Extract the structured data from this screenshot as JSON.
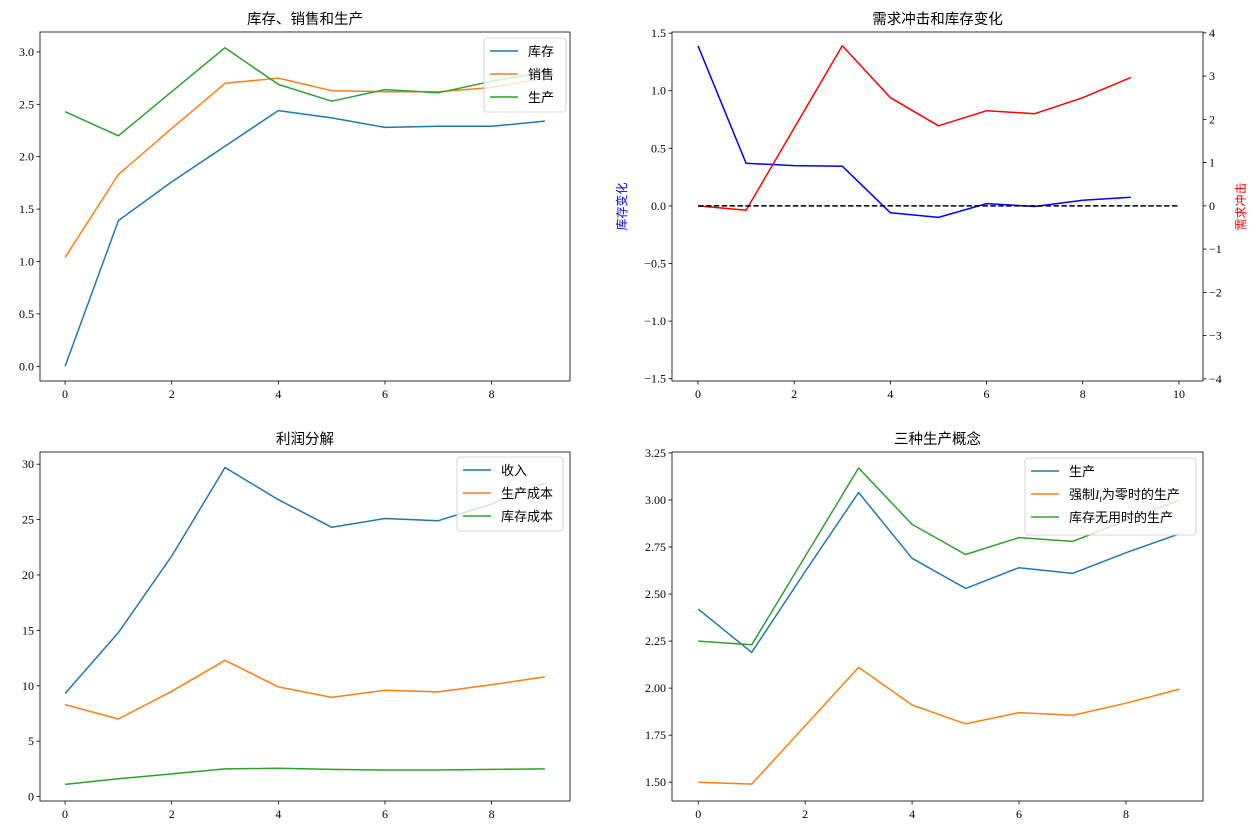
{
  "chart_data": [
    {
      "type": "line",
      "title": "库存、销售和生产",
      "xlabel": "",
      "ylabel": "",
      "xlim": [
        -0.47,
        9.47
      ],
      "ylim": [
        -0.14,
        3.19
      ],
      "grid": false,
      "legend": "upper right",
      "xticks": [
        0,
        2,
        4,
        6,
        8
      ],
      "xtick_labels": [
        "0",
        "2",
        "4",
        "6",
        "8"
      ],
      "yticks": [
        0,
        0.5,
        1.0,
        1.5,
        2.0,
        2.5,
        3.0
      ],
      "ytick_labels": [
        "0.0",
        "0.5",
        "1.0",
        "1.5",
        "2.0",
        "2.5",
        "3.0"
      ],
      "x": [
        0,
        1,
        2,
        3,
        4,
        5,
        6,
        7,
        8,
        9
      ],
      "series": [
        {
          "name": "库存",
          "color": "#1f77b4",
          "values": [
            0.0,
            1.39,
            1.76,
            2.1,
            2.44,
            2.37,
            2.28,
            2.29,
            2.29,
            2.34
          ]
        },
        {
          "name": "销售",
          "color": "#ff7f0e",
          "values": [
            1.04,
            1.83,
            2.27,
            2.7,
            2.75,
            2.63,
            2.62,
            2.62,
            2.66,
            2.75
          ]
        },
        {
          "name": "生产",
          "color": "#2ca02c",
          "values": [
            2.43,
            2.2,
            2.62,
            3.04,
            2.69,
            2.53,
            2.64,
            2.61,
            2.72,
            2.81
          ]
        }
      ]
    },
    {
      "type": "line",
      "title": "需求冲击和库存变化",
      "xlabel": "",
      "ylabel": "库存变化",
      "ylabel_color": "#0000ff",
      "y2label": "需求冲击",
      "y2label_color": "#ff0000",
      "xlim": [
        -0.54,
        10.5
      ],
      "ylim": [
        -1.52,
        1.51
      ],
      "y2lim": [
        -4.05,
        4.02
      ],
      "grid": false,
      "xticks": [
        0,
        2,
        4,
        6,
        8,
        10
      ],
      "xtick_labels": [
        "0",
        "2",
        "4",
        "6",
        "8",
        "10"
      ],
      "yticks": [
        -1.5,
        -1.0,
        -0.5,
        0.0,
        0.5,
        1.0,
        1.5
      ],
      "ytick_labels": [
        "−1.5",
        "−1.0",
        "−0.5",
        "0.0",
        "0.5",
        "1.0",
        "1.5"
      ],
      "y2ticks": [
        -4,
        -3,
        -2,
        -1,
        0,
        1,
        2,
        3,
        4
      ],
      "y2tick_labels": [
        "−4",
        "−3",
        "−2",
        "−1",
        "0",
        "1",
        "2",
        "3",
        "4"
      ],
      "x": [
        0,
        1,
        2,
        3,
        4,
        5,
        6,
        7,
        8,
        9
      ],
      "series": [
        {
          "axis": "left",
          "color": "#0000ff",
          "values": [
            1.39,
            0.37,
            0.35,
            0.345,
            -0.06,
            -0.1,
            0.02,
            -0.005,
            0.05,
            0.075
          ]
        },
        {
          "axis": "right",
          "color": "#ff0000",
          "values": [
            0.0,
            -0.1,
            1.8,
            3.7,
            2.5,
            1.85,
            2.2,
            2.13,
            2.5,
            2.97
          ]
        },
        {
          "axis": "left",
          "color": "#000000",
          "dashed": true,
          "x": [
            0,
            10
          ],
          "values": [
            0,
            0
          ]
        }
      ]
    },
    {
      "type": "line",
      "title": "利润分解",
      "xlabel": "",
      "ylabel": "",
      "xlim": [
        -0.47,
        9.47
      ],
      "ylim": [
        -0.4,
        31.1
      ],
      "grid": false,
      "legend": "upper right",
      "xticks": [
        0,
        2,
        4,
        6,
        8
      ],
      "xtick_labels": [
        "0",
        "2",
        "4",
        "6",
        "8"
      ],
      "yticks": [
        0,
        5,
        10,
        15,
        20,
        25,
        30
      ],
      "ytick_labels": [
        "0",
        "5",
        "10",
        "15",
        "20",
        "25",
        "30"
      ],
      "x": [
        0,
        1,
        2,
        3,
        4,
        5,
        6,
        7,
        8,
        9
      ],
      "series": [
        {
          "name": "收入",
          "color": "#1f77b4",
          "values": [
            9.3,
            14.8,
            21.7,
            29.7,
            26.8,
            24.3,
            25.1,
            24.9,
            26.4,
            28.3
          ]
        },
        {
          "name": "生产成本",
          "color": "#ff7f0e",
          "values": [
            8.3,
            7.0,
            9.5,
            12.3,
            9.9,
            8.95,
            9.6,
            9.45,
            10.1,
            10.8
          ]
        },
        {
          "name": "库存成本",
          "color": "#2ca02c",
          "values": [
            1.1,
            1.6,
            2.05,
            2.5,
            2.55,
            2.45,
            2.4,
            2.4,
            2.45,
            2.5
          ]
        }
      ]
    },
    {
      "type": "line",
      "title": "三种生产概念",
      "xlabel": "",
      "ylabel": "",
      "xlim": [
        -0.49,
        9.44
      ],
      "ylim": [
        1.4,
        3.255
      ],
      "grid": false,
      "legend": "upper right",
      "xticks": [
        0,
        2,
        4,
        6,
        8
      ],
      "xtick_labels": [
        "0",
        "2",
        "4",
        "6",
        "8"
      ],
      "yticks": [
        1.5,
        1.75,
        2.0,
        2.25,
        2.5,
        2.75,
        3.0,
        3.25
      ],
      "ytick_labels": [
        "1.50",
        "1.75",
        "2.00",
        "2.25",
        "2.50",
        "2.75",
        "3.00",
        "3.25"
      ],
      "x": [
        0,
        1,
        2,
        3,
        4,
        5,
        6,
        7,
        8,
        9
      ],
      "series": [
        {
          "name": "生产",
          "color": "#1f77b4",
          "values": [
            2.42,
            2.19,
            2.62,
            3.04,
            2.69,
            2.53,
            2.64,
            2.61,
            2.72,
            2.82
          ]
        },
        {
          "name": "强制I_t为零时的生产",
          "name_parts": [
            "强制",
            "I",
            "t",
            "为零时的生产"
          ],
          "color": "#ff7f0e",
          "values": [
            1.5,
            1.49,
            1.8,
            2.11,
            1.91,
            1.81,
            1.87,
            1.855,
            1.92,
            1.995
          ]
        },
        {
          "name": "库存无用时的生产",
          "color": "#2ca02c",
          "values": [
            2.25,
            2.23,
            2.7,
            3.17,
            2.87,
            2.71,
            2.8,
            2.78,
            2.89,
            3.0
          ]
        }
      ]
    }
  ]
}
